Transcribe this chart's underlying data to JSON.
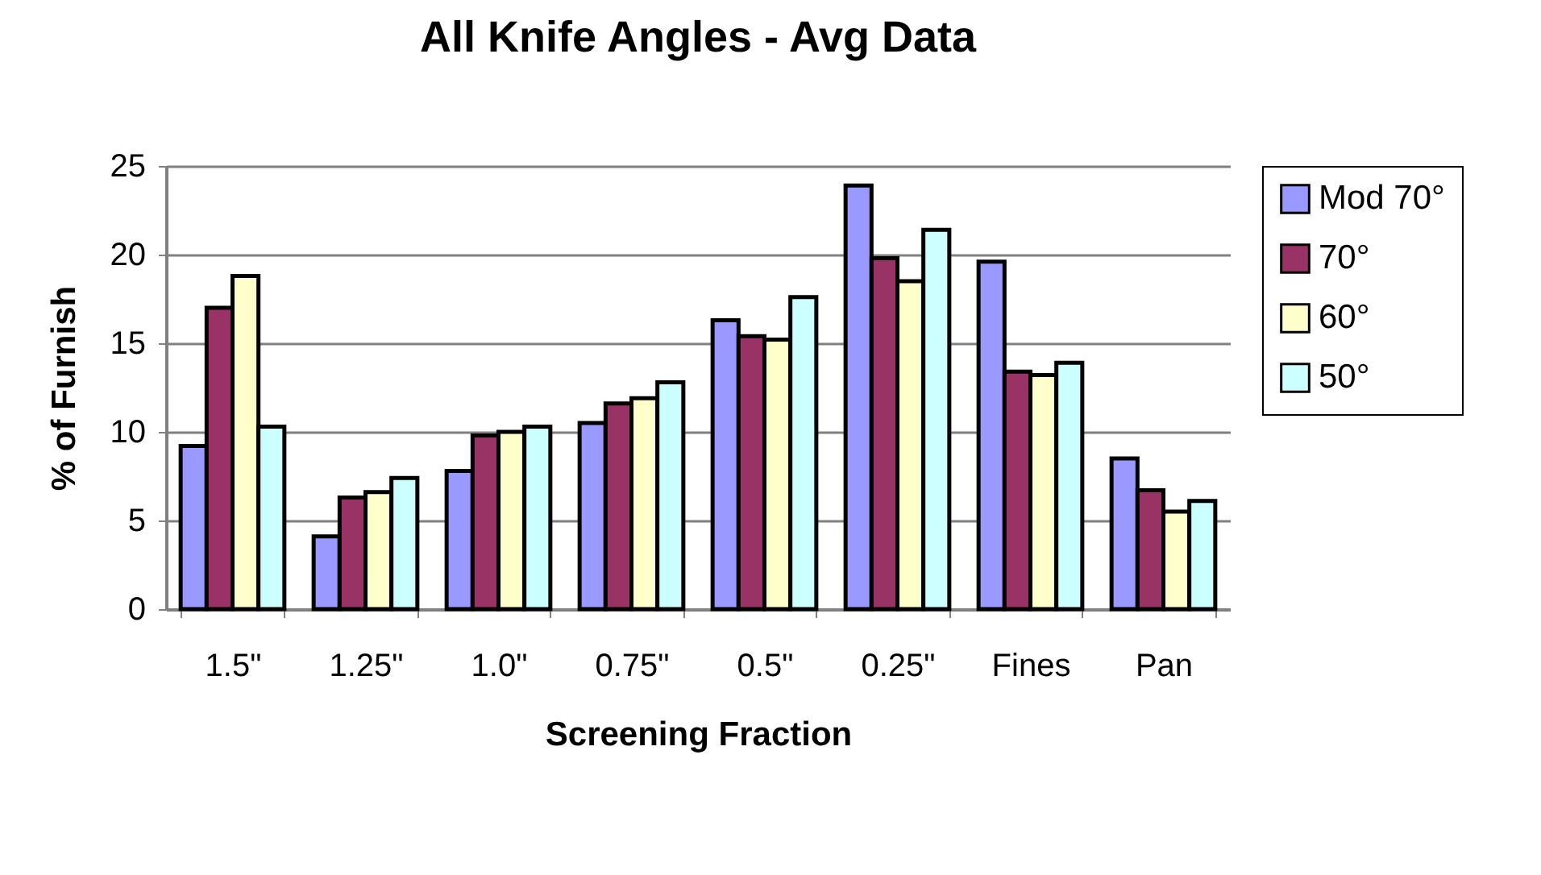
{
  "chart_data": {
    "type": "bar",
    "title": "All Knife Angles - Avg Data",
    "xlabel": "Screening Fraction",
    "ylabel": "% of Furnish",
    "categories": [
      "1.5\"",
      "1.25\"",
      "1.0\"",
      "0.75\"",
      "0.5\"",
      "0.25\"",
      "Fines",
      "Pan"
    ],
    "series": [
      {
        "name": "Mod 70°",
        "color": "#9999ff",
        "values": [
          9.2,
          4.1,
          7.8,
          10.5,
          16.3,
          23.9,
          19.6,
          8.5
        ]
      },
      {
        "name": "70°",
        "color": "#993366",
        "values": [
          17.0,
          6.3,
          9.8,
          11.6,
          15.4,
          19.8,
          13.4,
          6.7
        ]
      },
      {
        "name": "60°",
        "color": "#ffffcc",
        "values": [
          18.8,
          6.6,
          10.0,
          11.9,
          15.2,
          18.5,
          13.2,
          5.5
        ]
      },
      {
        "name": "50°",
        "color": "#ccffff",
        "values": [
          10.3,
          7.4,
          10.3,
          12.8,
          17.6,
          21.4,
          13.9,
          6.1
        ]
      }
    ],
    "ylim": [
      0,
      25
    ],
    "yticks": [
      0,
      5,
      10,
      15,
      20,
      25
    ],
    "grid": "y",
    "legend": "right"
  }
}
